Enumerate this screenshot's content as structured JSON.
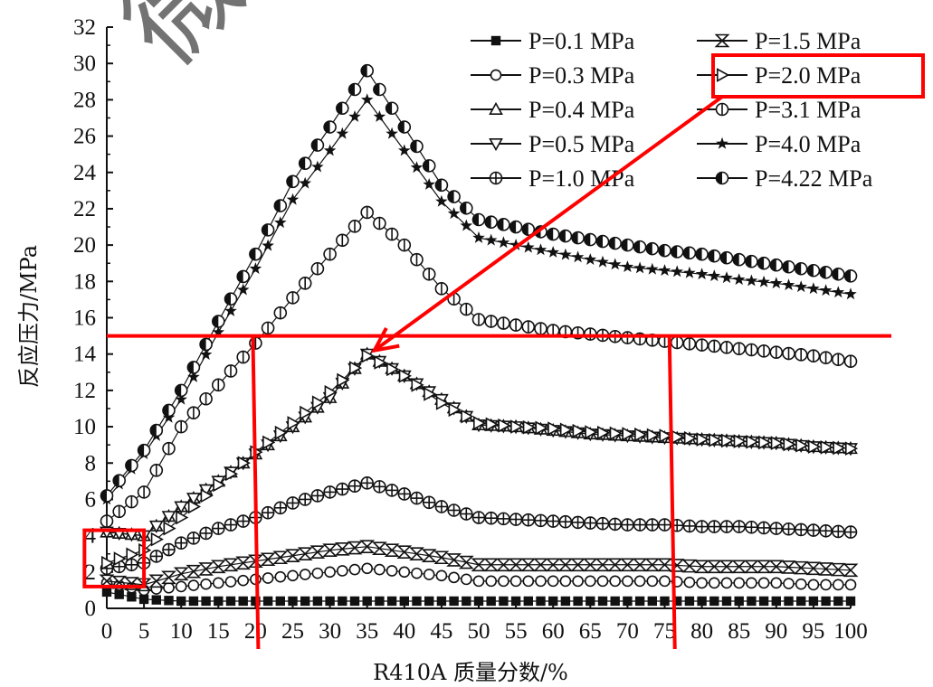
{
  "chart_data": {
    "type": "line",
    "xlabel": "R410A 质量分数/%",
    "ylabel": "反应压力/MPa",
    "xlim": [
      0,
      100
    ],
    "ylim": [
      0,
      32
    ],
    "x_ticks": [
      0,
      5,
      10,
      15,
      20,
      25,
      30,
      35,
      40,
      45,
      50,
      55,
      60,
      65,
      70,
      75,
      80,
      85,
      90,
      95,
      100
    ],
    "y_ticks": [
      0,
      2,
      4,
      6,
      8,
      10,
      12,
      14,
      16,
      18,
      20,
      22,
      24,
      26,
      28,
      30,
      32
    ],
    "grid": false,
    "legend_position": "top-right",
    "x": [
      0,
      5,
      10,
      15,
      20,
      25,
      30,
      35,
      40,
      45,
      50,
      55,
      60,
      65,
      70,
      75,
      80,
      85,
      90,
      95,
      100
    ],
    "series": [
      {
        "name": "P=0.1 MPa",
        "marker": "square-filled",
        "values": [
          0.9,
          0.5,
          0.4,
          0.4,
          0.4,
          0.4,
          0.4,
          0.4,
          0.4,
          0.4,
          0.4,
          0.4,
          0.4,
          0.4,
          0.4,
          0.4,
          0.4,
          0.4,
          0.4,
          0.4,
          0.4
        ]
      },
      {
        "name": "P=0.3 MPa",
        "marker": "circle-open",
        "values": [
          1.4,
          1.0,
          1.2,
          1.4,
          1.6,
          1.8,
          2.0,
          2.2,
          2.0,
          1.8,
          1.5,
          1.5,
          1.5,
          1.5,
          1.5,
          1.5,
          1.4,
          1.4,
          1.4,
          1.3,
          1.3
        ]
      },
      {
        "name": "P=0.4 MPa",
        "marker": "triangle-up-open",
        "values": [
          4.2,
          4.0,
          5.6,
          7.0,
          8.5,
          10.0,
          11.6,
          14.0,
          12.8,
          11.5,
          10.1,
          10.0,
          9.8,
          9.6,
          9.5,
          9.4,
          9.3,
          9.2,
          9.1,
          8.9,
          8.8
        ]
      },
      {
        "name": "P=0.5 MPa",
        "marker": "triangle-down-open",
        "values": [
          4.2,
          4.0,
          5.6,
          7.0,
          8.5,
          10.0,
          11.6,
          14.0,
          12.8,
          11.5,
          10.1,
          10.0,
          9.8,
          9.6,
          9.5,
          9.4,
          9.3,
          9.2,
          9.1,
          8.9,
          8.8
        ]
      },
      {
        "name": "P=1.0 MPa",
        "marker": "circle-plus",
        "values": [
          2.2,
          2.5,
          3.6,
          4.4,
          5.0,
          5.8,
          6.4,
          6.9,
          6.3,
          5.6,
          5.0,
          4.9,
          4.8,
          4.7,
          4.6,
          4.6,
          4.5,
          4.5,
          4.4,
          4.3,
          4.2
        ]
      },
      {
        "name": "P=1.5 MPa",
        "marker": "hourglass",
        "values": [
          1.5,
          1.3,
          1.9,
          2.3,
          2.6,
          2.9,
          3.2,
          3.4,
          3.1,
          2.8,
          2.4,
          2.4,
          2.4,
          2.4,
          2.4,
          2.4,
          2.3,
          2.3,
          2.3,
          2.2,
          2.1
        ]
      },
      {
        "name": "P=2.0 MPa",
        "marker": "triangle-right-open",
        "values": [
          2.5,
          3.2,
          5.0,
          6.8,
          8.6,
          10.2,
          11.9,
          13.9,
          12.8,
          11.3,
          10.2,
          10.0,
          9.9,
          9.7,
          9.6,
          9.5,
          9.3,
          9.2,
          9.1,
          8.9,
          8.8
        ]
      },
      {
        "name": "P=3.1 MPa",
        "marker": "circle-bar",
        "values": [
          4.8,
          6.4,
          10.0,
          12.3,
          14.6,
          17.1,
          19.5,
          21.8,
          20.0,
          17.6,
          15.9,
          15.6,
          15.3,
          15.1,
          14.9,
          14.7,
          14.5,
          14.3,
          14.1,
          13.9,
          13.6
        ]
      },
      {
        "name": "P=4.0 MPa",
        "marker": "star-filled",
        "values": [
          6.0,
          8.5,
          11.5,
          15.2,
          18.7,
          22.5,
          25.2,
          28.0,
          25.2,
          22.4,
          20.4,
          20.0,
          19.6,
          19.2,
          18.8,
          18.6,
          18.4,
          18.1,
          17.9,
          17.6,
          17.3
        ]
      },
      {
        "name": "P=4.22 MPa",
        "marker": "circle-half",
        "values": [
          6.2,
          8.7,
          12.0,
          15.8,
          19.5,
          23.5,
          26.5,
          29.6,
          26.5,
          23.3,
          21.4,
          21.0,
          20.6,
          20.3,
          20.0,
          19.7,
          19.5,
          19.2,
          18.9,
          18.6,
          18.3
        ]
      }
    ],
    "annotations": {
      "hline_y": 15,
      "vlines_x": [
        20,
        76
      ],
      "arrow_to": {
        "x": 35,
        "y": 14
      },
      "highlight_legend_entry": "P=2.0 MPa",
      "highlight_region": {
        "x0": -3,
        "x1": 5,
        "y0": 1.2,
        "y1": 4.3
      }
    },
    "colors": {
      "marks": "#111111",
      "annotation": "#ff0000",
      "background": "#ffffff"
    }
  },
  "watermark": "微信搜索"
}
